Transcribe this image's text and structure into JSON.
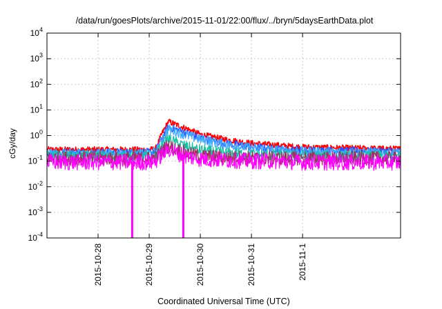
{
  "chart_data": {
    "type": "line",
    "title": "/data/run/goesPlots/archive/2015-11-01/22:00/flux/../bryn/5daysEarthData.plot",
    "xlabel": "Coordinated Universal Time (UTC)",
    "ylabel": "cGy/day",
    "yscale": "log",
    "ylim": [
      "1e-4",
      "1e4"
    ],
    "y_ticks": [
      {
        "base": "10",
        "exp": "-4"
      },
      {
        "base": "10",
        "exp": "-3"
      },
      {
        "base": "10",
        "exp": "-2"
      },
      {
        "base": "10",
        "exp": "-1"
      },
      {
        "base": "10",
        "exp": "0"
      },
      {
        "base": "10",
        "exp": "1"
      },
      {
        "base": "10",
        "exp": "2"
      },
      {
        "base": "10",
        "exp": "3"
      },
      {
        "base": "10",
        "exp": "4"
      }
    ],
    "x_tick_labels": [
      "2015-10-28",
      "2015-10-29",
      "2015-10-30",
      "2015-10-31",
      "2015-11-1"
    ],
    "xlim": [
      "2015-10-27 00:00",
      "2015-11-02 22:00"
    ],
    "grid": true,
    "x": [
      "2015-10-27 00:00",
      "2015-10-28 00:00",
      "2015-10-29 00:00",
      "2015-10-29 03:00",
      "2015-10-29 06:00",
      "2015-10-29 09:00",
      "2015-10-29 12:00",
      "2015-10-29 18:00",
      "2015-10-30 00:00",
      "2015-10-30 12:00",
      "2015-10-31 00:00",
      "2015-10-31 12:00",
      "2015-11-01 00:00",
      "2015-11-02 00:00",
      "2015-11-02 22:00"
    ],
    "series": [
      {
        "color": "#ff0000",
        "values": [
          0.28,
          0.28,
          0.28,
          0.3,
          1.2,
          3.5,
          2.8,
          1.8,
          1.1,
          0.7,
          0.5,
          0.42,
          0.35,
          0.32,
          0.3
        ]
      },
      {
        "color": "#2a50ff",
        "values": [
          0.22,
          0.22,
          0.22,
          0.24,
          0.8,
          2.2,
          1.8,
          1.2,
          0.8,
          0.5,
          0.36,
          0.3,
          0.27,
          0.25,
          0.24
        ]
      },
      {
        "color": "#40a8ff",
        "values": [
          0.2,
          0.2,
          0.2,
          0.22,
          0.7,
          1.8,
          1.5,
          1.0,
          0.7,
          0.45,
          0.32,
          0.27,
          0.24,
          0.22,
          0.21
        ]
      },
      {
        "color": "#18c0a0",
        "values": [
          0.15,
          0.15,
          0.15,
          0.16,
          0.35,
          0.75,
          0.55,
          0.35,
          0.26,
          0.2,
          0.18,
          0.17,
          0.16,
          0.15,
          0.15
        ]
      },
      {
        "color": "#a03060",
        "values": [
          0.13,
          0.13,
          0.13,
          0.14,
          0.25,
          0.4,
          0.3,
          0.2,
          0.16,
          0.14,
          0.13,
          0.13,
          0.13,
          0.13,
          0.13
        ]
      },
      {
        "color": "#ff00ff",
        "values": [
          0.09,
          0.09,
          0.09,
          0.1,
          0.18,
          0.3,
          0.22,
          0.15,
          0.12,
          0.11,
          0.1,
          0.1,
          0.09,
          0.09,
          0.09
        ]
      }
    ],
    "dropouts": [
      {
        "series_color": "#ff00ff",
        "x": "2015-10-28 16:00",
        "y": "1e-4"
      },
      {
        "series_color": "#ff00ff",
        "x": "2015-10-29 16:00",
        "y": "1e-4"
      }
    ]
  }
}
